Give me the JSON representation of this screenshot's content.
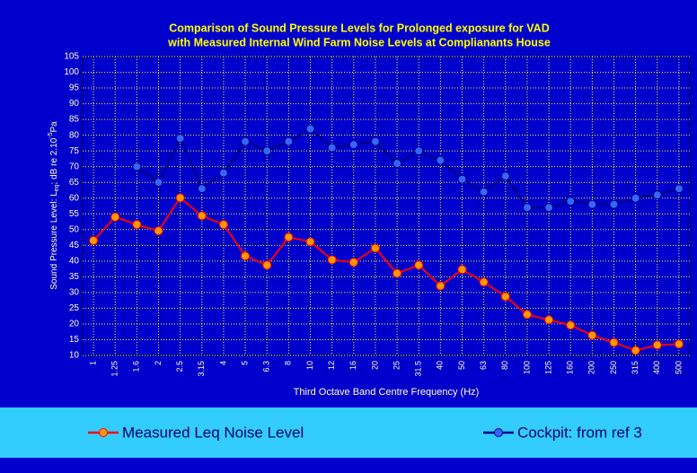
{
  "chart_data": {
    "type": "line",
    "title": [
      "Comparison of Sound Pressure Levels for Prolonged exposure for VAD",
      "with Measured Internal Wind Farm Noise Levels at Complianants House"
    ],
    "x_label": "Third Octave Band Centre Frequency (Hz)",
    "y_label": [
      "Sound Pressure Level: L",
      "eq",
      "; dB re 2.10",
      "-5",
      "Pa"
    ],
    "categories": [
      "1",
      "1.25",
      "1.6",
      "2",
      "2.5",
      "3.15",
      "4",
      "5",
      "6.3",
      "8",
      "10",
      "12",
      "16",
      "20",
      "25",
      "31.5",
      "40",
      "50",
      "63",
      "80",
      "100",
      "125",
      "160",
      "200",
      "250",
      "315",
      "400",
      "500"
    ],
    "series": [
      {
        "name": "Measured Leq Noise Level",
        "color": "#ff0000",
        "marker_color": "#ff9900",
        "values": [
          46.5,
          54,
          51.6,
          49.6,
          60.1,
          54.4,
          51.6,
          41.6,
          38.7,
          47.6,
          46.1,
          40.4,
          39.6,
          44.1,
          36.1,
          38.7,
          32.1,
          37.3,
          33.3,
          28.7,
          23,
          21.3,
          19.6,
          16.4,
          14.1,
          11.6,
          13.3,
          13.6
        ]
      },
      {
        "name": "Cockpit: from ref 3",
        "color": "#000080",
        "marker_color": "#3366ff",
        "values": [
          null,
          null,
          70,
          65,
          79,
          63,
          68,
          78,
          75,
          78,
          82,
          76,
          77,
          78,
          71,
          75,
          72,
          66,
          62,
          67,
          57,
          57,
          59,
          58,
          58,
          60,
          61,
          63
        ]
      }
    ],
    "ylim": [
      10,
      105
    ],
    "yticks": [
      10,
      15,
      20,
      25,
      30,
      35,
      40,
      45,
      50,
      55,
      60,
      65,
      70,
      75,
      80,
      85,
      90,
      95,
      100,
      105
    ],
    "grid": true
  }
}
